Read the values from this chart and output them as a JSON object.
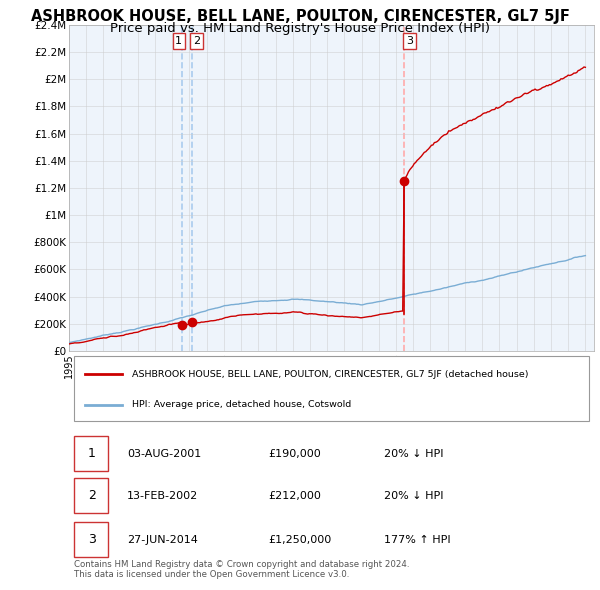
{
  "title": "ASHBROOK HOUSE, BELL LANE, POULTON, CIRENCESTER, GL7 5JF",
  "subtitle": "Price paid vs. HM Land Registry's House Price Index (HPI)",
  "ylim": [
    0,
    2400000
  ],
  "yticks": [
    0,
    200000,
    400000,
    600000,
    800000,
    1000000,
    1200000,
    1400000,
    1600000,
    1800000,
    2000000,
    2200000,
    2400000
  ],
  "ytick_labels": [
    "£0",
    "£200K",
    "£400K",
    "£600K",
    "£800K",
    "£1M",
    "£1.2M",
    "£1.4M",
    "£1.6M",
    "£1.8M",
    "£2M",
    "£2.2M",
    "£2.4M"
  ],
  "xlim_start": 1995.0,
  "xlim_end": 2025.5,
  "sale1_year": 2001.58,
  "sale1_price": 190000,
  "sale2_year": 2002.12,
  "sale2_price": 212000,
  "sale3_year": 2014.49,
  "sale3_price": 1250000,
  "red_line_color": "#cc0000",
  "blue_line_color": "#7aadd4",
  "vline_color_sale12": "#aaccee",
  "vline_color_sale3": "#ffaaaa",
  "plot_bg_color": "#eef4fb",
  "background_color": "#ffffff",
  "grid_color": "#cccccc",
  "legend_label_red": "ASHBROOK HOUSE, BELL LANE, POULTON, CIRENCESTER, GL7 5JF (detached house)",
  "legend_label_blue": "HPI: Average price, detached house, Cotswold",
  "table_rows": [
    {
      "num": "1",
      "date": "03-AUG-2001",
      "price": "£190,000",
      "change": "20% ↓ HPI"
    },
    {
      "num": "2",
      "date": "13-FEB-2002",
      "price": "£212,000",
      "change": "20% ↓ HPI"
    },
    {
      "num": "3",
      "date": "27-JUN-2014",
      "price": "£1,250,000",
      "change": "177% ↑ HPI"
    }
  ],
  "footer": "Contains HM Land Registry data © Crown copyright and database right 2024.\nThis data is licensed under the Open Government Licence v3.0.",
  "title_fontsize": 10.5,
  "subtitle_fontsize": 9.5
}
